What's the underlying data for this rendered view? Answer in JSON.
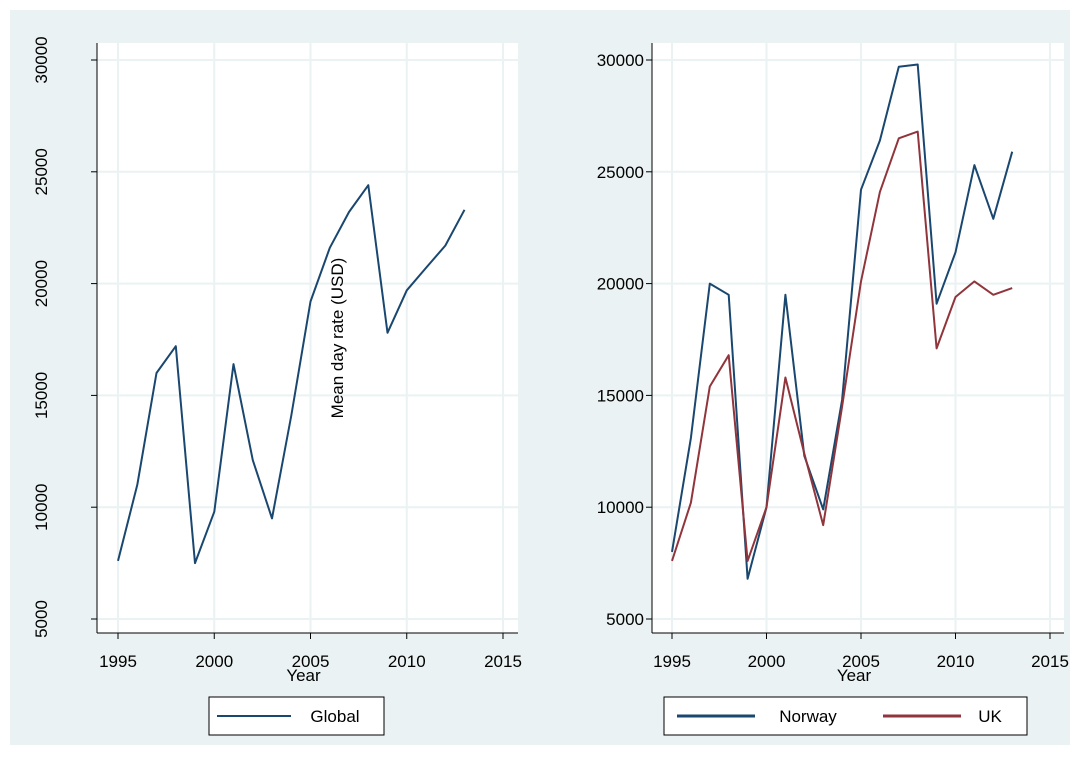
{
  "chart_data": [
    {
      "type": "line",
      "x": [
        1995,
        1996,
        1997,
        1998,
        1999,
        2000,
        2001,
        2002,
        2003,
        2004,
        2005,
        2006,
        2007,
        2008,
        2009,
        2010,
        2011,
        2012,
        2013
      ],
      "series": [
        {
          "name": "Global",
          "values": [
            7600,
            11000,
            16000,
            17200,
            7500,
            9800,
            16400,
            12100,
            9500,
            14100,
            19200,
            21600,
            23200,
            24400,
            17800,
            19700,
            20700,
            21700,
            23300
          ]
        }
      ],
      "xlabel": "Year",
      "ylabel": "Mean day rate (USD)",
      "xlim": [
        1995,
        2015
      ],
      "ylim": [
        5000,
        30000
      ],
      "xticks": [
        "1995",
        "2000",
        "2005",
        "2010",
        "2015"
      ],
      "yticks": [
        "5000",
        "10000",
        "15000",
        "20000",
        "25000",
        "30000"
      ],
      "grid": true,
      "legend_position": "bottom"
    },
    {
      "type": "line",
      "x": [
        1995,
        1996,
        1997,
        1998,
        1999,
        2000,
        2001,
        2002,
        2003,
        2004,
        2005,
        2006,
        2007,
        2008,
        2009,
        2010,
        2011,
        2012,
        2013
      ],
      "series": [
        {
          "name": "Norway",
          "values": [
            8000,
            13100,
            20000,
            19500,
            6800,
            10000,
            19500,
            12300,
            9900,
            14800,
            24200,
            26400,
            29700,
            29800,
            19100,
            21400,
            25300,
            22900,
            25900
          ]
        },
        {
          "name": "UK",
          "values": [
            7600,
            10200,
            15400,
            16800,
            7600,
            10000,
            15800,
            12400,
            9200,
            14500,
            20100,
            24100,
            26500,
            26800,
            17100,
            19400,
            20100,
            19500,
            19800
          ]
        }
      ],
      "xlabel": "Year",
      "ylabel": "",
      "xlim": [
        1995,
        2015
      ],
      "ylim": [
        5000,
        30000
      ],
      "xticks": [
        "1995",
        "2000",
        "2005",
        "2010",
        "2015"
      ],
      "yticks": [
        "5000",
        "10000",
        "15000",
        "20000",
        "25000",
        "30000"
      ],
      "grid": true,
      "legend_position": "bottom"
    }
  ],
  "colors": {
    "background": "#eaf2f3",
    "plot_region": "#ffffff",
    "grid": "#eaf2f3",
    "global": "#1a476f",
    "norway": "#1a476f",
    "uk": "#90353b"
  }
}
